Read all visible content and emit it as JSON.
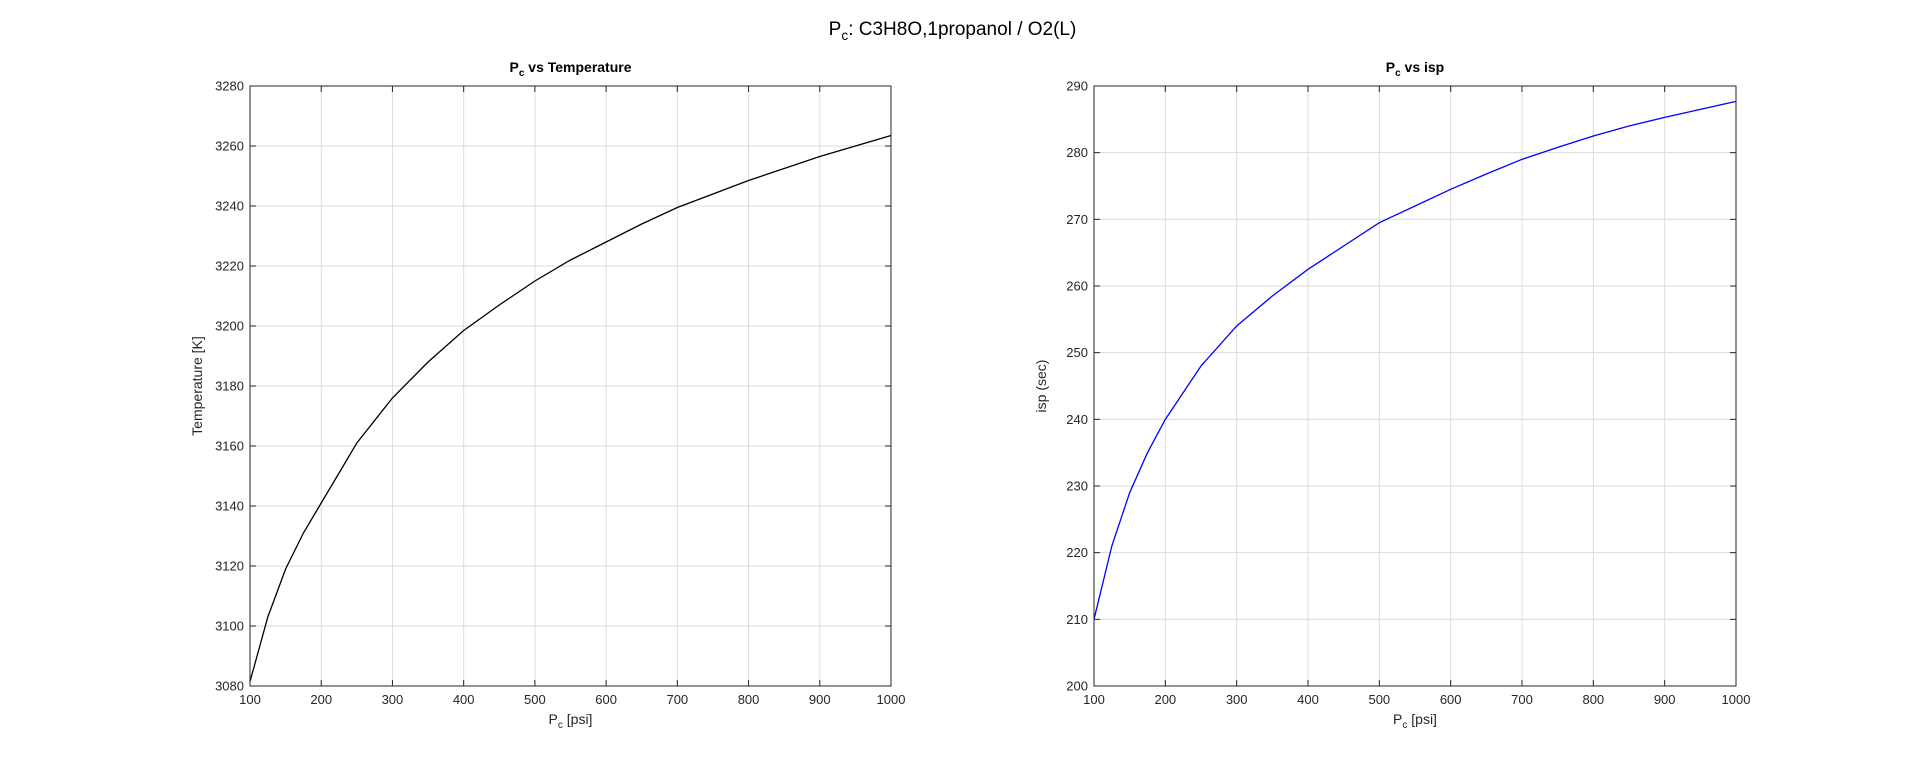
{
  "figure": {
    "title_main": "P",
    "title_sub": "c",
    "title_rest": ": C3H8O,1propanol / O2(L)"
  },
  "chart_data": [
    {
      "type": "line",
      "title_main": "P",
      "title_sub": "c",
      "title_rest": " vs Temperature",
      "xlabel_main": "P",
      "xlabel_sub": "c",
      "xlabel_rest": " [psi]",
      "ylabel": "Temperature [K]",
      "xlim": [
        100,
        1000
      ],
      "ylim": [
        3080,
        3280
      ],
      "xticks": [
        100,
        200,
        300,
        400,
        500,
        600,
        700,
        800,
        900,
        1000
      ],
      "yticks": [
        3080,
        3100,
        3120,
        3140,
        3160,
        3180,
        3200,
        3220,
        3240,
        3260,
        3280
      ],
      "grid": true,
      "series": [
        {
          "color": "#000000",
          "x": [
            100,
            125,
            150,
            175,
            200,
            250,
            300,
            350,
            400,
            450,
            500,
            550,
            600,
            650,
            700,
            750,
            800,
            850,
            900,
            950,
            1000
          ],
          "y": [
            3081.5,
            3103,
            3119,
            3131,
            3141,
            3161,
            3176,
            3188,
            3198.5,
            3207,
            3215,
            3222,
            3228,
            3234,
            3239.5,
            3244,
            3248.5,
            3252.5,
            3256.5,
            3260,
            3263.5
          ]
        }
      ]
    },
    {
      "type": "line",
      "title_main": "P",
      "title_sub": "c",
      "title_rest": " vs isp",
      "xlabel_main": "P",
      "xlabel_sub": "c",
      "xlabel_rest": " [psi]",
      "ylabel": "isp (sec)",
      "xlim": [
        100,
        1000
      ],
      "ylim": [
        200,
        290
      ],
      "xticks": [
        100,
        200,
        300,
        400,
        500,
        600,
        700,
        800,
        900,
        1000
      ],
      "yticks": [
        200,
        210,
        220,
        230,
        240,
        250,
        260,
        270,
        280,
        290
      ],
      "grid": true,
      "series": [
        {
          "color": "#0000ff",
          "x": [
            100,
            125,
            150,
            175,
            200,
            250,
            300,
            350,
            400,
            450,
            500,
            550,
            600,
            650,
            700,
            750,
            800,
            850,
            900,
            950,
            1000
          ],
          "y": [
            210,
            221,
            229,
            235,
            240,
            248,
            254,
            258.5,
            262.5,
            266,
            269.5,
            272,
            274.5,
            276.8,
            279,
            280.8,
            282.5,
            284,
            285.3,
            286.5,
            287.7
          ]
        }
      ]
    }
  ]
}
